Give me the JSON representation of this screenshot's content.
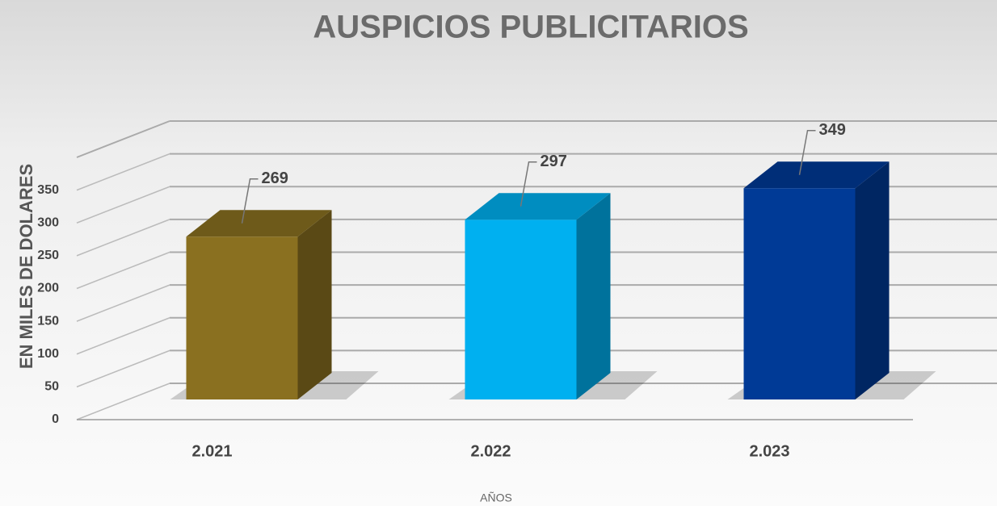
{
  "chart_data": {
    "type": "bar3d",
    "title": "AUSPICIOS PUBLICITARIOS",
    "y_label": "EN MILES DE DOLARES",
    "x_label": "AÑOS",
    "categories": [
      "2.021",
      "2.022",
      "2.023"
    ],
    "values": [
      269,
      297,
      349
    ],
    "colors": [
      "#8a7020",
      "#00b0f0",
      "#003a96"
    ],
    "ylim": [
      0,
      400
    ],
    "yticks": [
      0,
      50,
      100,
      150,
      200,
      250,
      300,
      350
    ],
    "grid": true
  }
}
